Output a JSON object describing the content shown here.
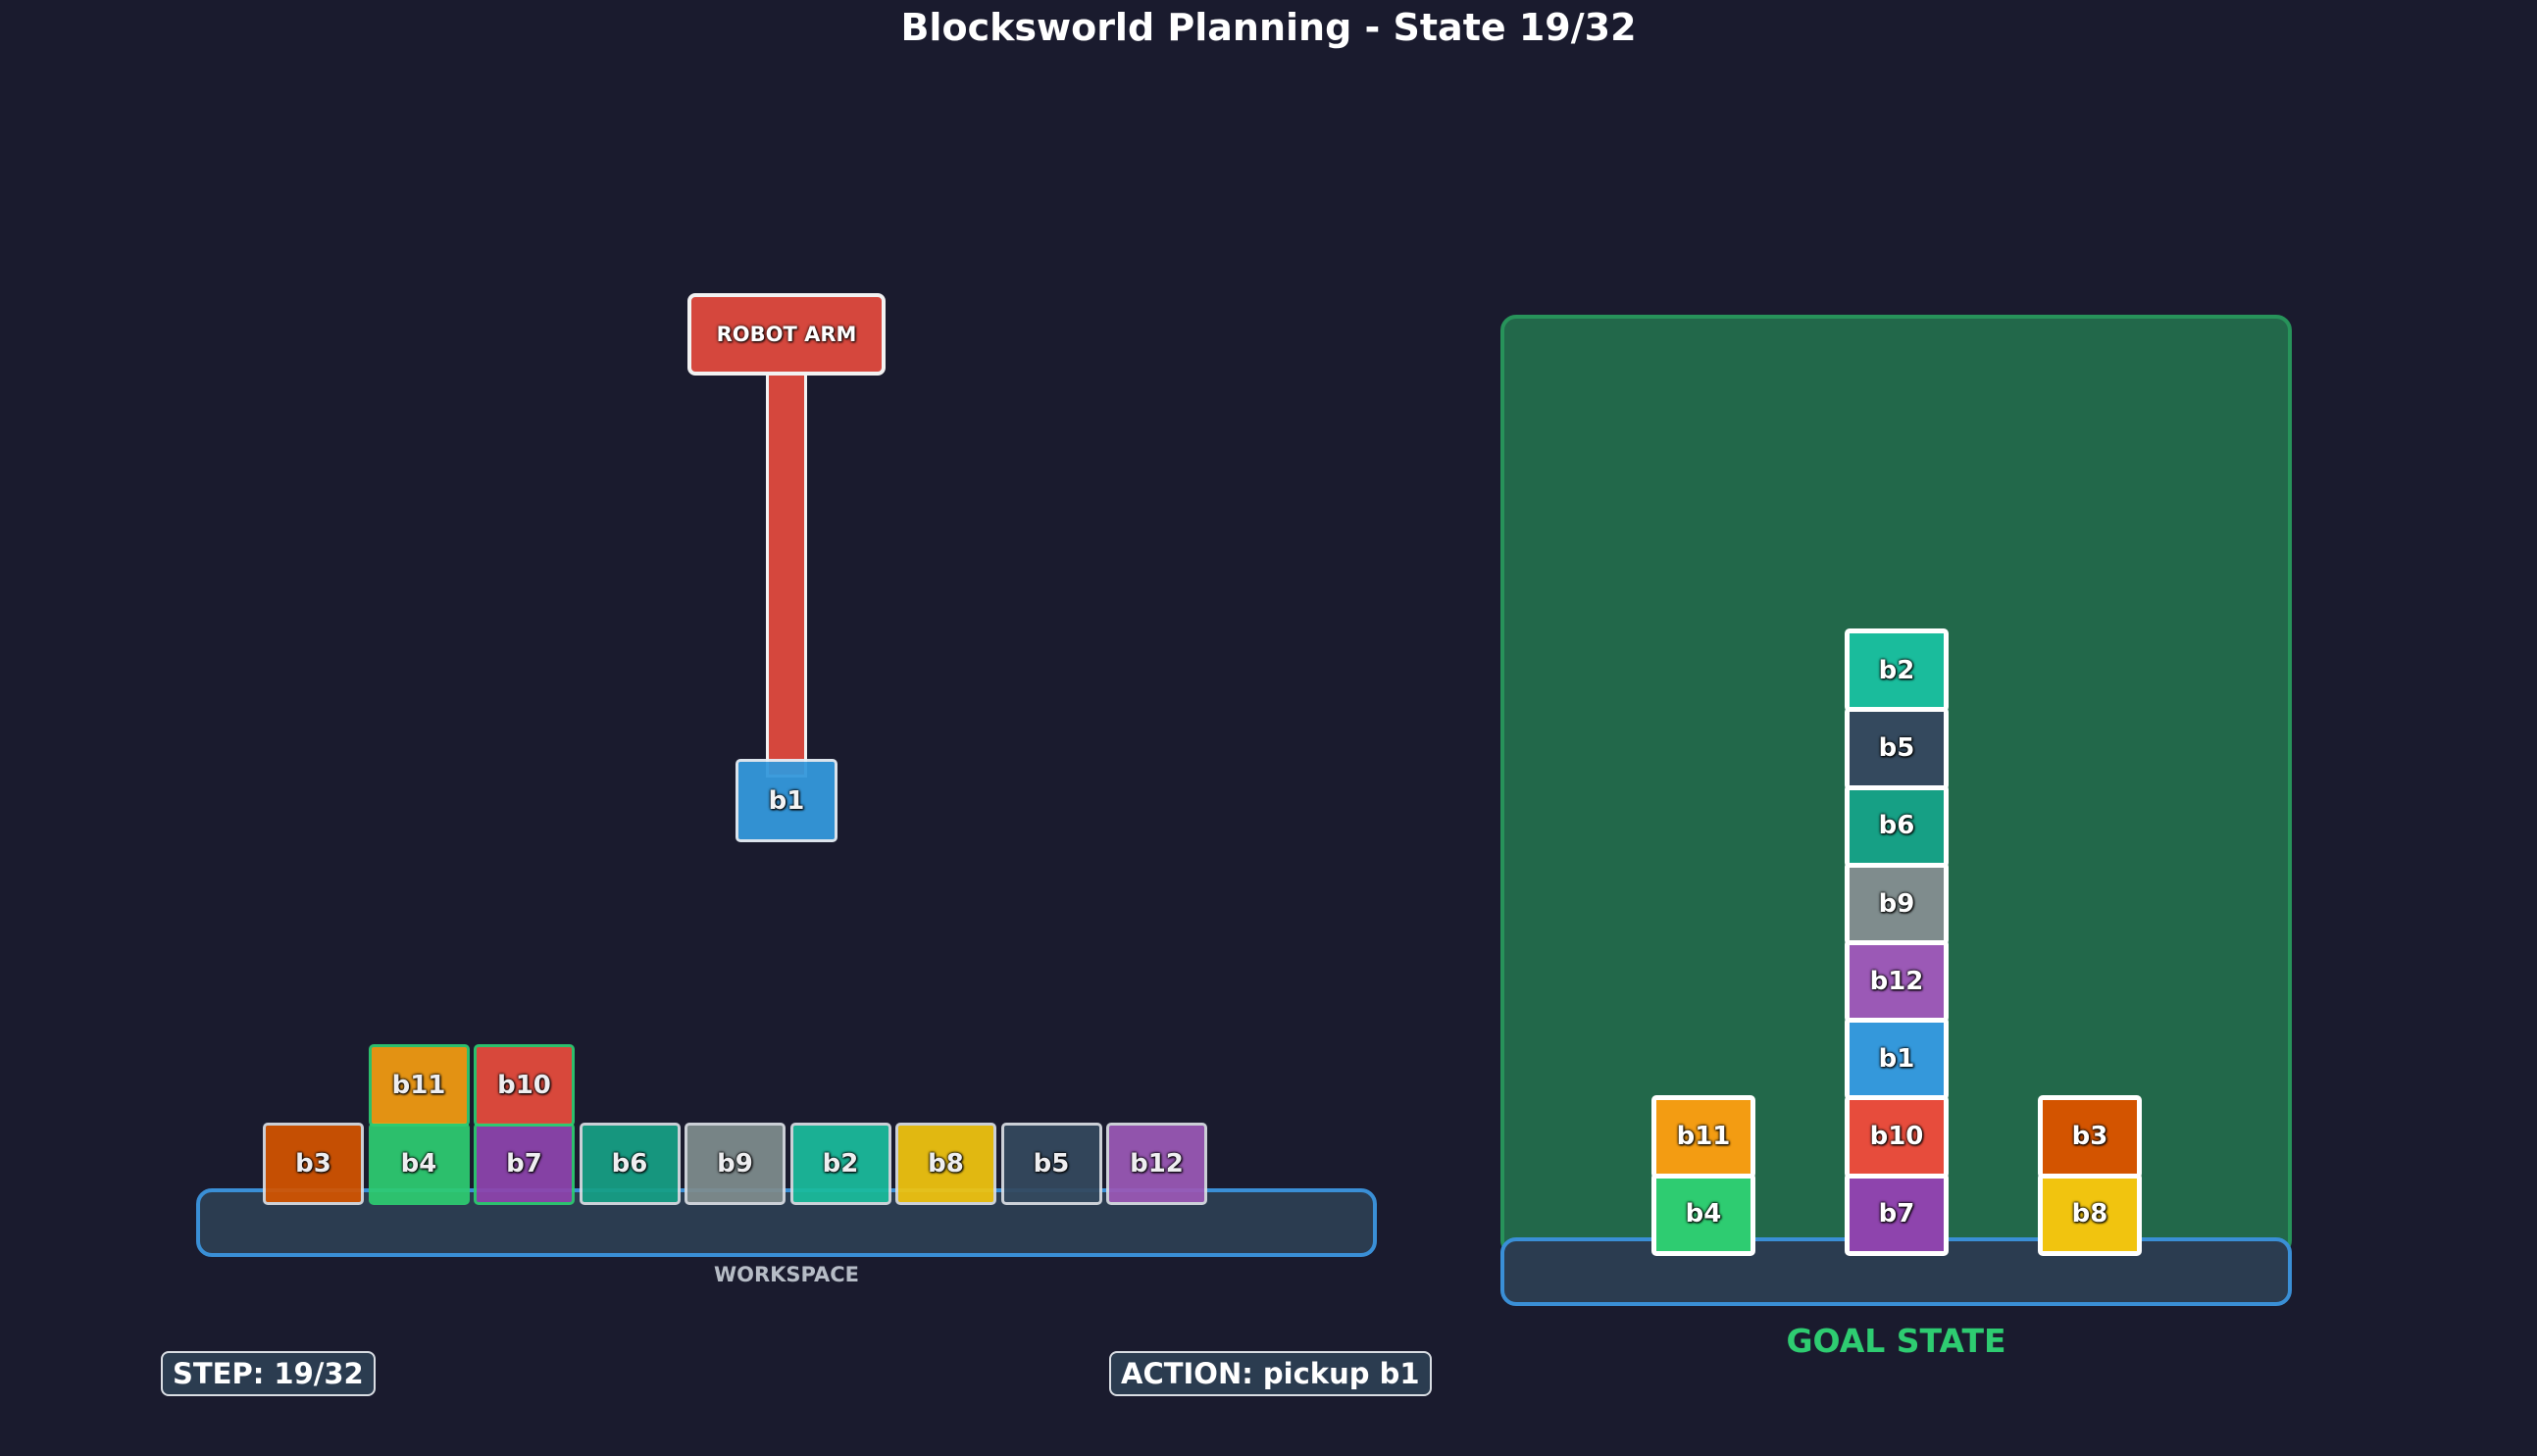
{
  "title": "Blocksworld Planning - State 19/32",
  "workspace_label": "WORKSPACE",
  "goal_label": "GOAL STATE",
  "robot_arm_label": "ROBOT ARM",
  "step_text": "STEP: 19/32",
  "action_text": "ACTION: pickup b1",
  "colors": {
    "b1": "#3498db",
    "b2": "#1abc9c",
    "b3": "#d35400",
    "b4": "#2ecc71",
    "b5": "#34495e",
    "b6": "#16a085",
    "b7": "#8e44ad",
    "b8": "#f1c40f",
    "b9": "#7f8c8d",
    "b10": "#e74c3c",
    "b11": "#f39c12",
    "b12": "#9b59b6"
  },
  "workspace": {
    "held": "b1",
    "stacks": [
      [
        "b3"
      ],
      [
        "b4",
        "b11"
      ],
      [
        "b7",
        "b10"
      ],
      [
        "b6"
      ],
      [
        "b9"
      ],
      [
        "b2"
      ],
      [
        "b8"
      ],
      [
        "b5"
      ],
      [
        "b12"
      ]
    ],
    "goal_satisfied": [
      "b4",
      "b11",
      "b7",
      "b10"
    ]
  },
  "goal": {
    "stacks": [
      [
        "b4",
        "b11"
      ],
      [
        "b7",
        "b10",
        "b1",
        "b12",
        "b9",
        "b6",
        "b5",
        "b2"
      ],
      [
        "b8",
        "b3"
      ]
    ]
  }
}
